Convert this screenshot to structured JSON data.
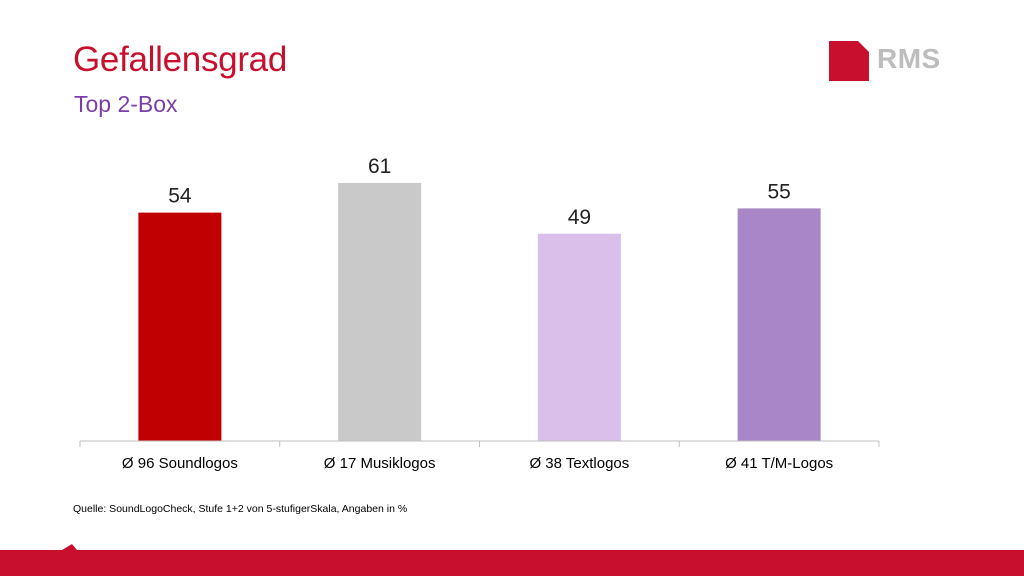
{
  "header": {
    "title": "Gefallensgrad",
    "subtitle": "Top 2-Box",
    "logo_text": "RMS"
  },
  "footer": {
    "source": "Quelle: SoundLogoCheck, Stufe 1+2 von 5-stufigerSkala, Angaben in %"
  },
  "colors": {
    "title": "#c8102e",
    "subtitle": "#7b3fa8",
    "brand_red": "#c8102e",
    "logo_gray": "#bdbdbd",
    "axis": "#bfbfbf"
  },
  "chart_data": {
    "type": "bar",
    "categories": [
      "Ø 96 Soundlogos",
      "Ø 17 Musiklogos",
      "Ø 38 Textlogos",
      "Ø 41 T/M-Logos"
    ],
    "values": [
      54,
      61,
      49,
      55
    ],
    "bar_colors": [
      "#c00000",
      "#c9c9c9",
      "#d9bfe9",
      "#a886c8"
    ],
    "ylim": [
      0,
      61
    ],
    "grid": false,
    "legend": "none"
  }
}
